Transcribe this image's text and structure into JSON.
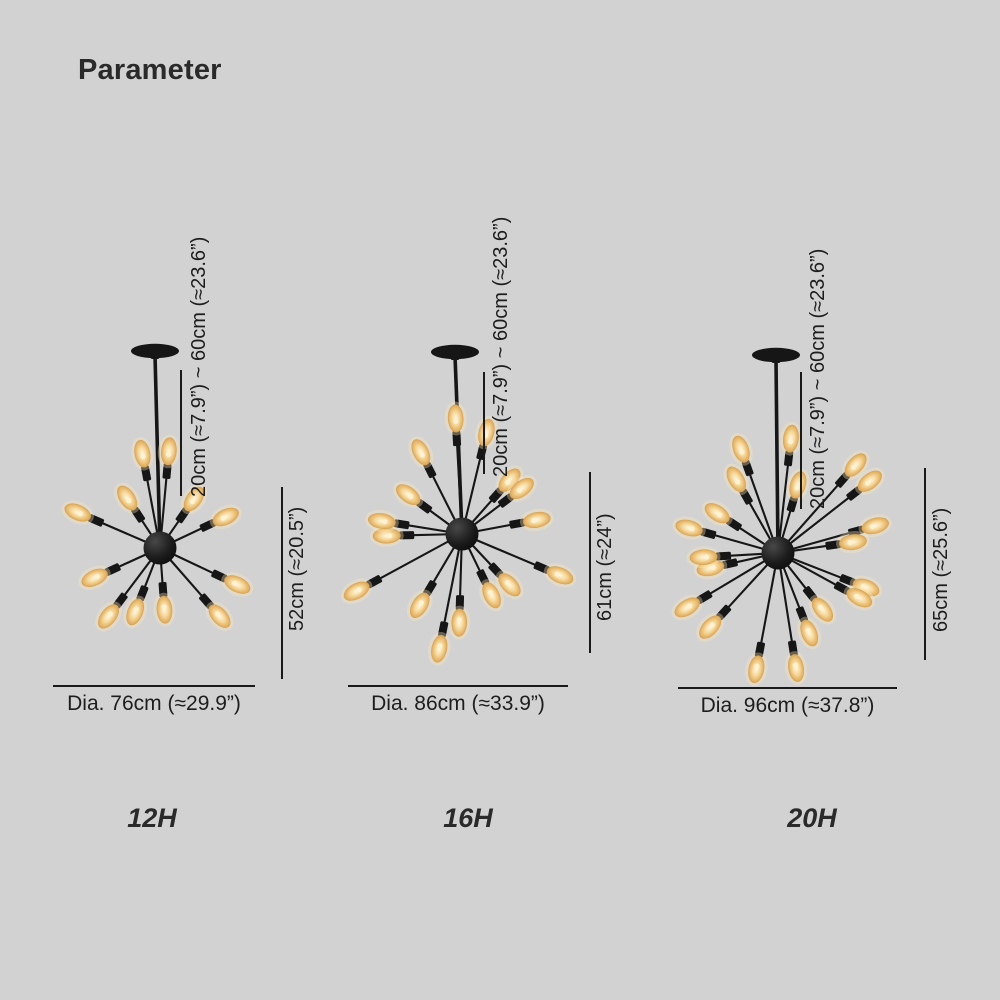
{
  "page": {
    "title": "Parameter",
    "background_color": "#d2d2d2"
  },
  "colors": {
    "fixture_black": "#161616",
    "measure_line": "#1a1a1a",
    "text": "#1d1d1d",
    "bulb_glow_center": "#fff8e2",
    "bulb_amber": "#e2ae5e"
  },
  "variants": [
    {
      "label": "12H",
      "arm_count": 12,
      "rod_length_label": "20cm (≈7.9”) ~ 60cm (≈23.6”)",
      "height_label": "52cm (≈20.5”)",
      "diameter_label": "Dia. 76cm (≈29.9”)"
    },
    {
      "label": "16H",
      "arm_count": 16,
      "rod_length_label": "20cm (≈7.9”) ~ 60cm (≈23.6”)",
      "height_label": "61cm (≈24”)",
      "diameter_label": "Dia. 86cm (≈33.9”)"
    },
    {
      "label": "20H",
      "arm_count": 20,
      "rod_length_label": "20cm (≈7.9”) ~ 60cm (≈23.6”)",
      "height_label": "65cm (≈25.6”)",
      "diameter_label": "Dia. 96cm (≈37.8”)"
    }
  ]
}
